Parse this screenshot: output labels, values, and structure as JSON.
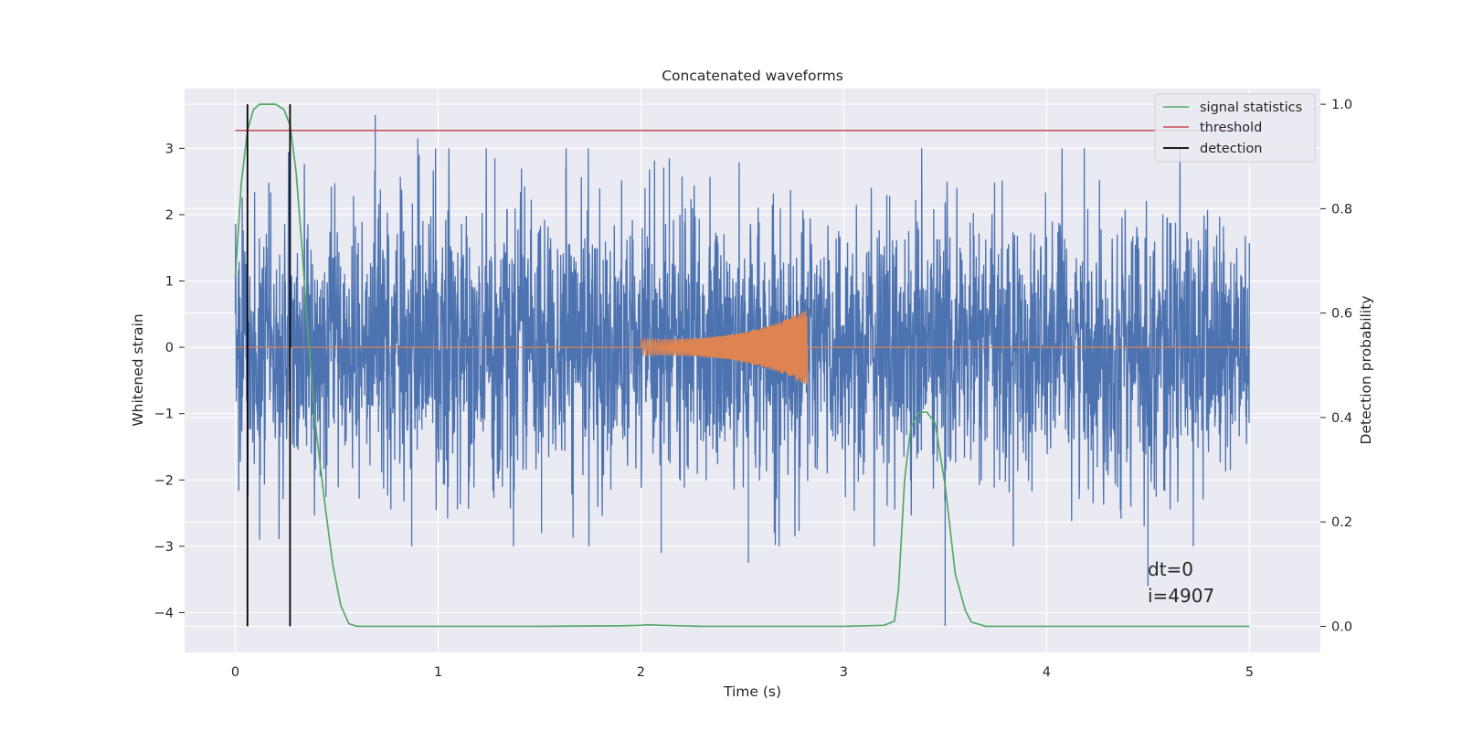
{
  "chart_data": {
    "type": "line",
    "title": "Concatenated waveforms",
    "xlabel": "Time (s)",
    "ylabel": "Whitened strain",
    "y2label": "Detection probability",
    "xlim": [
      -0.25,
      5.35
    ],
    "ylim": [
      -4.6,
      3.9
    ],
    "y2lim": [
      -0.05,
      1.03
    ],
    "grid": true,
    "legend_placement": "top-right",
    "xticks": [
      0,
      1,
      2,
      3,
      4,
      5
    ],
    "yticks": [
      3,
      2,
      1,
      0,
      -1,
      -2,
      -3,
      -4
    ],
    "y2ticks": [
      1.0,
      0.8,
      0.6,
      0.4,
      0.2,
      0.0
    ],
    "xtick_labels": [
      "0",
      "1",
      "2",
      "3",
      "4",
      "5"
    ],
    "ytick_labels": [
      "3",
      "2",
      "1",
      "0",
      "−1",
      "−2",
      "−3",
      "−4"
    ],
    "y2tick_labels": [
      "1.0",
      "0.8",
      "0.6",
      "0.4",
      "0.2",
      "0.0"
    ],
    "annotations": [
      "dt=0",
      "i=4907"
    ],
    "series": [
      {
        "name": "",
        "axis": "left",
        "color": "#4c72b0",
        "description_values": {
          "x_range": [
            0,
            5
          ],
          "amplitude_typical": 1.4,
          "peak_max": 3.5,
          "peak_min": -4.2
        },
        "notable_peaks": [
          [
            0.69,
            3.5
          ],
          [
            0.9,
            3.15
          ],
          [
            1.28,
            2.85
          ],
          [
            1.63,
            2.7
          ],
          [
            2.02,
            2.4
          ],
          [
            2.14,
            2.85
          ],
          [
            3.5,
            -4.2
          ],
          [
            4.5,
            -3.6
          ],
          [
            0.87,
            -3.0
          ],
          [
            2.53,
            -3.25
          ],
          [
            2.1,
            -3.1
          ],
          [
            0.12,
            -2.9
          ],
          [
            1.51,
            -2.8
          ]
        ]
      },
      {
        "name": "",
        "axis": "left",
        "color": "#dd8452",
        "chirp": {
          "x_start": 2.0,
          "x_end": 2.82,
          "amp_start": 0.12,
          "amp_end": 0.58,
          "baseline": 0
        }
      },
      {
        "name": "signal statistics",
        "axis": "right",
        "color": "#55a868",
        "x": [
          0.0,
          0.03,
          0.06,
          0.09,
          0.12,
          0.16,
          0.2,
          0.24,
          0.27,
          0.3,
          0.33,
          0.36,
          0.4,
          0.44,
          0.48,
          0.52,
          0.56,
          0.6,
          1.0,
          1.5,
          1.9,
          2.0,
          2.03,
          2.1,
          2.3,
          2.6,
          3.0,
          3.2,
          3.25,
          3.27,
          3.3,
          3.33,
          3.37,
          3.41,
          3.45,
          3.5,
          3.55,
          3.6,
          3.63,
          3.7,
          4.0,
          4.5,
          5.0
        ],
        "y": [
          0.67,
          0.85,
          0.95,
          0.99,
          1.0,
          1.0,
          1.0,
          0.99,
          0.96,
          0.87,
          0.72,
          0.55,
          0.37,
          0.24,
          0.12,
          0.04,
          0.005,
          0.0,
          0.0,
          0.0,
          0.001,
          0.002,
          0.003,
          0.002,
          0.0,
          0.0,
          0.0,
          0.002,
          0.01,
          0.07,
          0.28,
          0.38,
          0.41,
          0.41,
          0.39,
          0.27,
          0.1,
          0.03,
          0.008,
          0.0,
          0.0,
          0.0,
          0.0
        ]
      },
      {
        "name": "threshold",
        "axis": "right",
        "color": "#c44e52",
        "value": 0.95,
        "x_range": [
          0,
          5
        ]
      },
      {
        "name": "detection",
        "axis": "right",
        "color": "#000000",
        "x": [
          0.06,
          0.27
        ],
        "y_range": [
          0.0,
          1.0
        ]
      }
    ]
  }
}
